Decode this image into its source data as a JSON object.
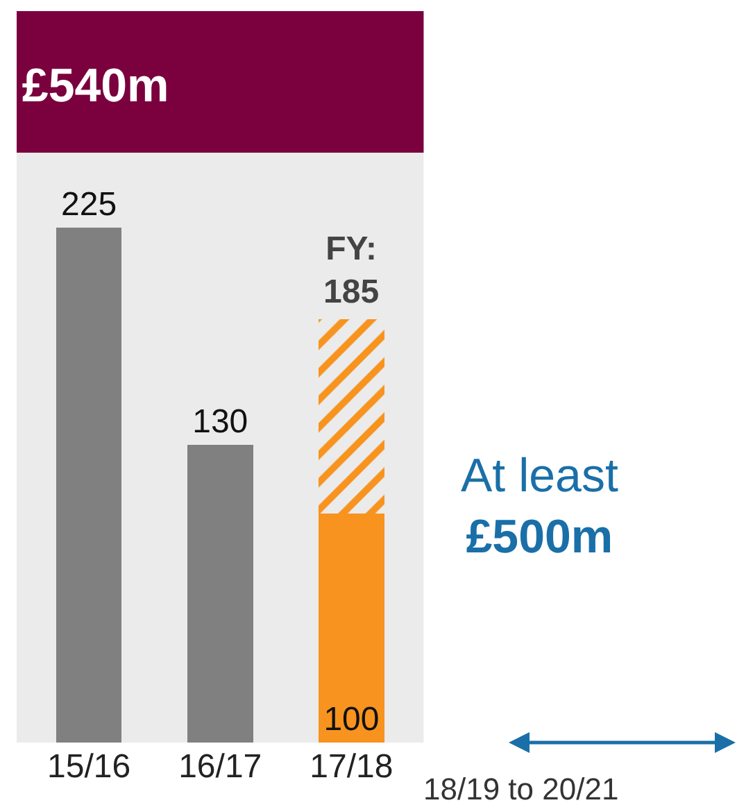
{
  "chart_data": {
    "type": "bar",
    "title": "£540m",
    "categories": [
      "15/16",
      "16/17",
      "17/18"
    ],
    "stacked": true,
    "grid": false,
    "series": [
      {
        "colors": [
          "#808080",
          "#808080",
          "#f7931e"
        ],
        "values": [
          225,
          130,
          100
        ],
        "value_labels": [
          "225",
          "130",
          "100"
        ]
      },
      {
        "color": "#f7931e",
        "values": [
          null,
          null,
          85
        ]
      }
    ],
    "totals": [
      null,
      null,
      "FY:\n185"
    ],
    "annotations": [
      "At least\n£500m",
      "18/19 to 20/21"
    ]
  }
}
